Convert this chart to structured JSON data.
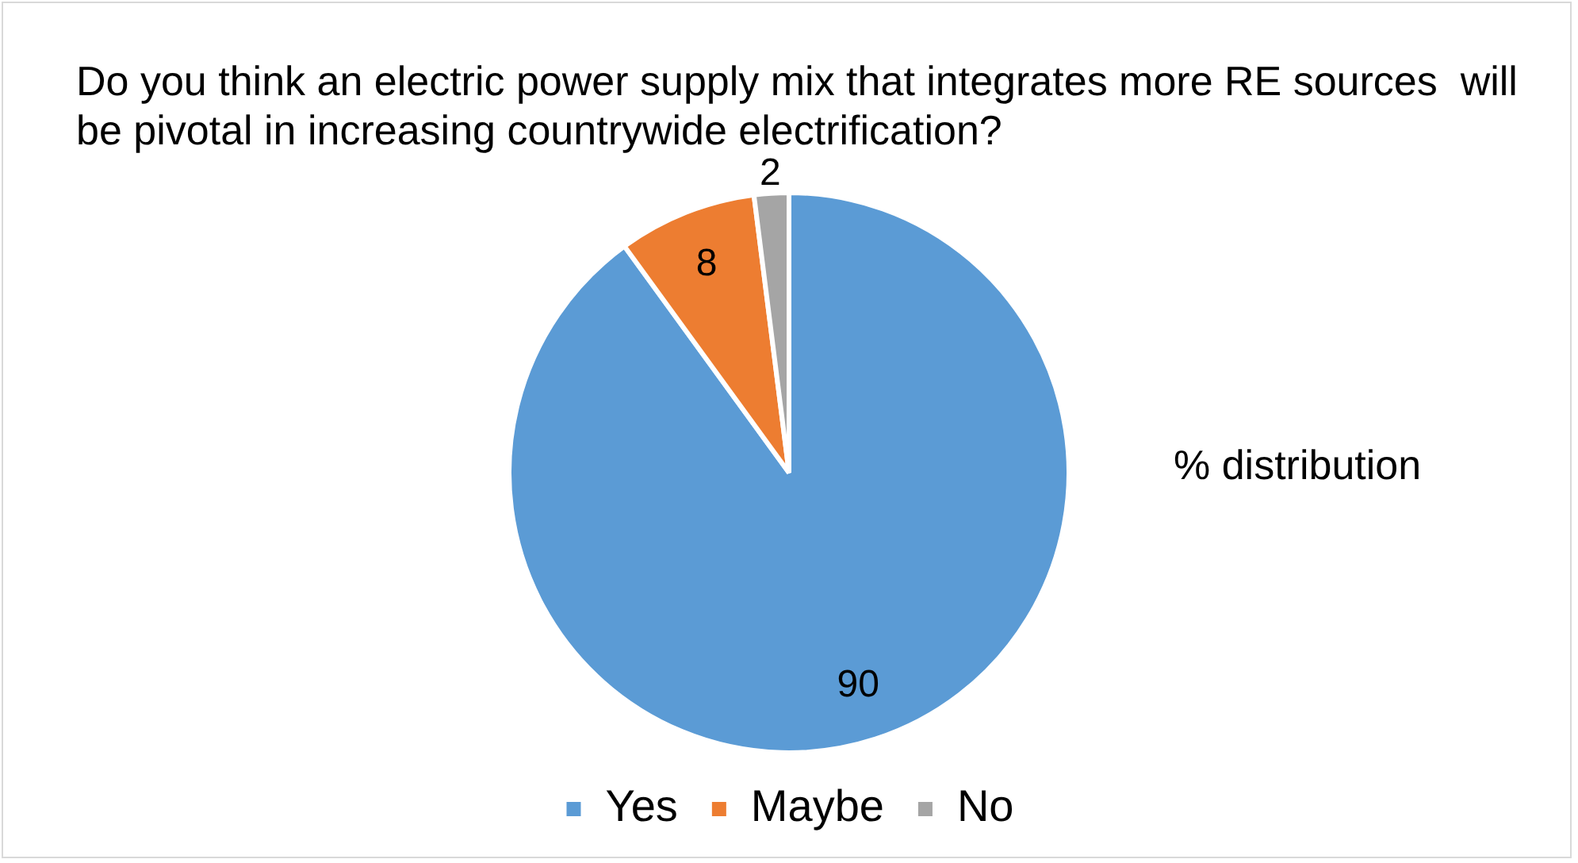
{
  "chart_data": {
    "type": "pie",
    "title": "Do you think an electric power supply mix that integrates more RE sources  will be pivotal in increasing countrywide electrification?",
    "categories": [
      "Yes",
      "Maybe",
      "No"
    ],
    "values": [
      90,
      8,
      2
    ],
    "colors": [
      "#5b9bd5",
      "#ed7d31",
      "#a5a5a5"
    ],
    "data_labels": true,
    "legend": "bottom",
    "annotations": [
      "% distribution"
    ]
  }
}
